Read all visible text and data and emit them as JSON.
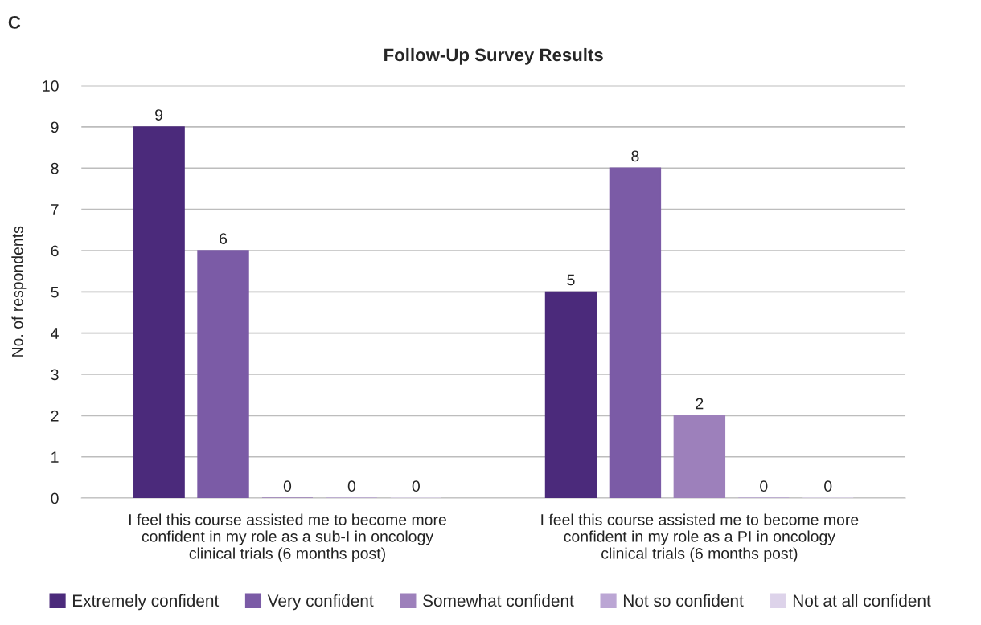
{
  "chart_data": {
    "type": "bar",
    "title": "Follow-Up Survey Results",
    "ylabel": "No. of respondents",
    "annotations": [
      "C"
    ],
    "categories": [
      "I feel this course assisted me to become more\nconfident in my role as a sub-I in oncology\nclinical trials (6 months post)",
      "I feel this course assisted me to become more\nconfident in my role as a PI in oncology\nclinical trials (6 months post)"
    ],
    "series": [
      {
        "name": "Extremely confident",
        "color": "#4b2a7b",
        "values": [
          9,
          5
        ]
      },
      {
        "name": "Very confident",
        "color": "#7b5ba6",
        "values": [
          6,
          8
        ]
      },
      {
        "name": "Somewhat confident",
        "color": "#9d80bb",
        "values": [
          0,
          2
        ]
      },
      {
        "name": "Not so confident",
        "color": "#bba6d4",
        "values": [
          0,
          0
        ]
      },
      {
        "name": "Not at all confident",
        "color": "#ddd3ea",
        "values": [
          0,
          0
        ]
      }
    ],
    "ylim": [
      0,
      10
    ],
    "yticks": [
      0,
      1,
      2,
      3,
      4,
      5,
      6,
      7,
      8,
      9,
      10
    ],
    "grid": "y",
    "legend": "bottom",
    "data_labels": true
  }
}
